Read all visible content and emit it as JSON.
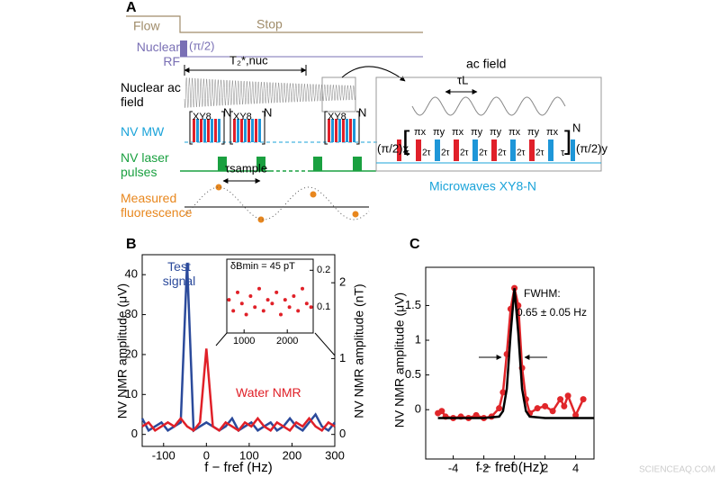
{
  "panel_a": {
    "label": "A",
    "flow": "Flow",
    "stop": "Stop",
    "nuclear_rf": "Nuclear RF",
    "pi_half": "(π/2)",
    "t2": "T₂*,nuc",
    "nuclear_ac": "Nuclear ac field",
    "nv_mw": "NV MW",
    "xy8": "XY8",
    "n": "N",
    "laser": "NV laser pulses",
    "tau_sample": "τsample",
    "fluorescence": "Measured fluorescence",
    "ac_field": "ac field",
    "tau_l": "τL",
    "pi_half_x": "(π/2)x",
    "pi_half_y": "(π/2)y",
    "tau": "τ",
    "two_tau": "2τ",
    "pulses": [
      "πx",
      "πy",
      "πx",
      "πy",
      "πy",
      "πx",
      "πy",
      "πx"
    ],
    "microwaves": "Microwaves XY8-N"
  },
  "chart_data": [
    {
      "type": "line",
      "panel": "B",
      "ylabel": "NV NMR amplitude (μV)",
      "y2label": "NV NMR amplitude (nT)",
      "xlabel": "f − fref (Hz)",
      "x": [
        -150,
        -135,
        -120,
        -105,
        -90,
        -75,
        -60,
        -45,
        -30,
        -15,
        0,
        15,
        30,
        45,
        60,
        75,
        90,
        105,
        120,
        135,
        150,
        165,
        180,
        195,
        210,
        225,
        240,
        255,
        270,
        285,
        300
      ],
      "series": [
        {
          "name": "Test signal",
          "color": "#2b4a9b",
          "values": [
            4,
            1,
            2,
            3,
            1,
            2,
            3,
            43,
            1,
            2,
            3,
            2,
            1,
            2,
            4,
            1,
            2,
            3,
            1,
            2,
            3,
            1,
            2,
            4,
            2,
            1,
            3,
            5,
            2,
            1,
            3
          ]
        },
        {
          "name": "Water NMR",
          "color": "#e02028",
          "values": [
            2,
            3,
            1,
            2,
            3,
            2,
            4,
            2,
            1,
            3,
            21.5,
            2,
            1,
            3,
            2,
            1,
            3,
            2,
            4,
            2,
            1,
            3,
            2,
            1,
            3,
            2,
            4,
            2,
            1,
            3,
            2
          ]
        }
      ],
      "xlim": [
        -150,
        300
      ],
      "ylim": [
        -3,
        45
      ],
      "y2lim": [
        -0.158,
        2.37
      ],
      "xticks": [
        -100,
        0,
        100,
        200,
        300
      ],
      "yticks": [
        0,
        10,
        20,
        30,
        40
      ],
      "y2ticks": [
        0,
        1,
        2
      ]
    },
    {
      "type": "line",
      "panel": "C",
      "ylabel": "NV NMR amplitude (μV)",
      "xlabel": "f − fref (Hz)",
      "annotation": [
        "FWHM:",
        "0.65 ± 0.05 Hz"
      ],
      "series": [
        {
          "color": "#e0262a",
          "markers": true,
          "x": [
            -5,
            -4.75,
            -4.5,
            -4,
            -3.5,
            -3,
            -2.5,
            -2,
            -1.5,
            -1,
            -0.75,
            -0.5,
            -0.25,
            0,
            0.25,
            0.5,
            0.75,
            1,
            1.5,
            2,
            2.5,
            3,
            3.25,
            3.5,
            4,
            4.5
          ],
          "values": [
            -0.05,
            -0.02,
            -0.1,
            -0.12,
            -0.1,
            -0.12,
            -0.08,
            -0.12,
            -0.1,
            0.02,
            0.25,
            0.8,
            1.45,
            1.75,
            1.5,
            0.6,
            0.15,
            -0.05,
            0.02,
            0.05,
            -0.02,
            0.15,
            0.05,
            0.2,
            -0.08,
            0.15
          ]
        },
        {
          "color": "#000000",
          "x": [
            -5,
            -2,
            -1,
            -0.75,
            -0.5,
            -0.25,
            0,
            0.25,
            0.5,
            0.75,
            1,
            2,
            5.2
          ],
          "values": [
            -0.12,
            -0.12,
            -0.1,
            -0.02,
            0.3,
            1.1,
            1.75,
            1.1,
            0.3,
            -0.02,
            -0.1,
            -0.12,
            -0.12
          ]
        }
      ],
      "xlim": [
        -5.8,
        5.2
      ],
      "ylim": [
        -0.71,
        2.05
      ],
      "xticks": [
        -4,
        -2,
        0,
        2,
        4
      ],
      "yticks": [
        0,
        0.5,
        1,
        1.5
      ]
    },
    {
      "type": "scatter",
      "title": "δBmin = 45 pT",
      "color": "#e02028",
      "x": [
        650,
        750,
        850,
        950,
        1050,
        1150,
        1250,
        1350,
        1450,
        1550,
        1650,
        1750,
        1850,
        1950,
        2050,
        2150,
        2250,
        2350,
        2450,
        2550
      ],
      "values": [
        0.12,
        0.09,
        0.14,
        0.11,
        0.08,
        0.13,
        0.1,
        0.15,
        0.09,
        0.12,
        0.11,
        0.14,
        0.08,
        0.12,
        0.1,
        0.13,
        0.09,
        0.15,
        0.11,
        0.1
      ],
      "xlim": [
        600,
        2600
      ],
      "ylim": [
        0.03,
        0.23
      ],
      "xticks": [
        1000,
        2000
      ],
      "yticks": [
        0.1,
        0.2
      ]
    }
  ],
  "watermark": "SCIENCEAQ.COM"
}
